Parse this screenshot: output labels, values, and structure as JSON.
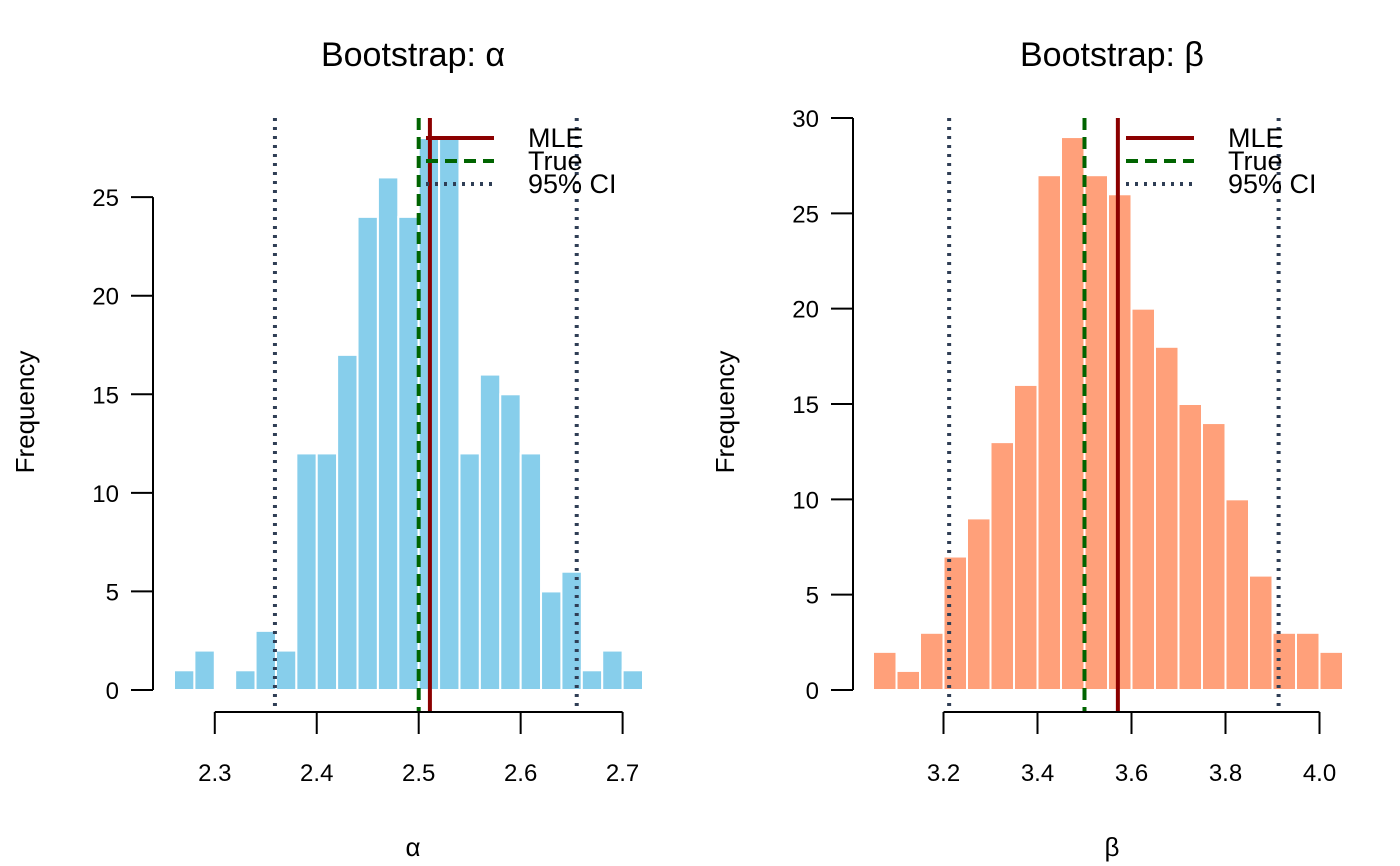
{
  "chart_data": [
    {
      "type": "histogram",
      "title": "Bootstrap: α",
      "xlabel": "α",
      "ylabel": "Frequency",
      "bin_width": 0.02,
      "bins_start": [
        2.26,
        2.28,
        2.3,
        2.32,
        2.34,
        2.36,
        2.38,
        2.4,
        2.42,
        2.44,
        2.46,
        2.48,
        2.5,
        2.52,
        2.54,
        2.56,
        2.58,
        2.6,
        2.62,
        2.64,
        2.66,
        2.68,
        2.7
      ],
      "counts": [
        1,
        2,
        0,
        1,
        3,
        2,
        12,
        12,
        17,
        24,
        26,
        24,
        28,
        28,
        12,
        16,
        15,
        12,
        5,
        6,
        1,
        2,
        1
      ],
      "bar_color": "#87CEEB",
      "xlim": [
        2.26,
        2.72
      ],
      "ylim": [
        0,
        28
      ],
      "xticks": [
        2.3,
        2.4,
        2.5,
        2.6,
        2.7
      ],
      "xtick_labels": [
        "2.3",
        "2.4",
        "2.5",
        "2.6",
        "2.7"
      ],
      "yticks": [
        0,
        5,
        10,
        15,
        20,
        25
      ],
      "ytick_labels": [
        "0",
        "5",
        "10",
        "15",
        "20",
        "25"
      ],
      "lines": [
        {
          "label": "MLE",
          "x": 2.511,
          "color": "#8B0000",
          "style": "solid"
        },
        {
          "label": "True",
          "x": 2.5,
          "color": "#006400",
          "style": "dashed"
        },
        {
          "label": "95% CI",
          "x": 2.359,
          "color": "#2F3E55",
          "style": "dotted"
        },
        {
          "label": "95% CI",
          "x": 2.655,
          "color": "#2F3E55",
          "style": "dotted"
        }
      ],
      "legend": {
        "position": "top-right",
        "entries": [
          {
            "label": "MLE",
            "color": "#8B0000",
            "style": "solid"
          },
          {
            "label": "True",
            "color": "#006400",
            "style": "dashed"
          },
          {
            "label": "95% CI",
            "color": "#2F3E55",
            "style": "dotted"
          }
        ]
      }
    },
    {
      "type": "histogram",
      "title": "Bootstrap: β",
      "xlabel": "β",
      "ylabel": "Frequency",
      "bin_width": 0.05,
      "bins_start": [
        3.05,
        3.1,
        3.15,
        3.2,
        3.25,
        3.3,
        3.35,
        3.4,
        3.45,
        3.5,
        3.55,
        3.6,
        3.65,
        3.7,
        3.75,
        3.8,
        3.85,
        3.9,
        3.95,
        4.0
      ],
      "counts": [
        2,
        1,
        3,
        7,
        9,
        13,
        16,
        27,
        29,
        27,
        26,
        20,
        18,
        15,
        14,
        10,
        6,
        3,
        3,
        2
      ],
      "bar_color": "#FFA07A",
      "xlim": [
        3.05,
        4.05
      ],
      "ylim": [
        0,
        30
      ],
      "xticks": [
        3.2,
        3.4,
        3.6,
        3.8,
        4.0
      ],
      "xtick_labels": [
        "3.2",
        "3.4",
        "3.6",
        "3.8",
        "4.0"
      ],
      "yticks": [
        0,
        5,
        10,
        15,
        20,
        25,
        30
      ],
      "ytick_labels": [
        "0",
        "5",
        "10",
        "15",
        "20",
        "25",
        "30"
      ],
      "lines": [
        {
          "label": "MLE",
          "x": 3.571,
          "color": "#8B0000",
          "style": "solid"
        },
        {
          "label": "True",
          "x": 3.5,
          "color": "#006400",
          "style": "dashed"
        },
        {
          "label": "95% CI",
          "x": 3.212,
          "color": "#2F3E55",
          "style": "dotted"
        },
        {
          "label": "95% CI",
          "x": 3.913,
          "color": "#2F3E55",
          "style": "dotted"
        }
      ],
      "legend": {
        "position": "top-right",
        "entries": [
          {
            "label": "MLE",
            "color": "#8B0000",
            "style": "solid"
          },
          {
            "label": "True",
            "color": "#006400",
            "style": "dashed"
          },
          {
            "label": "95% CI",
            "color": "#2F3E55",
            "style": "dotted"
          }
        ]
      }
    }
  ]
}
